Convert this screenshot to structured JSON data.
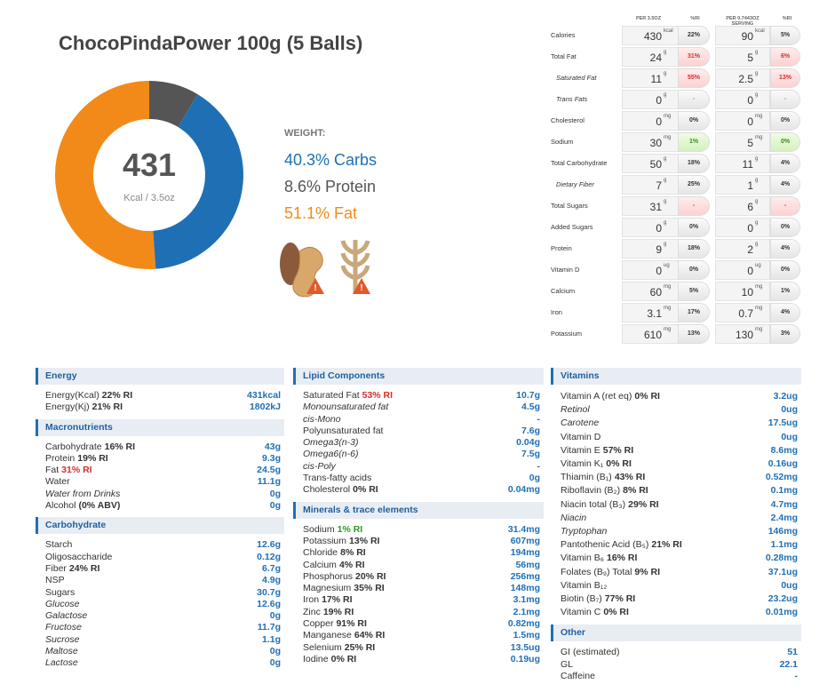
{
  "header": {
    "title": "ChocoPindaPower 100g (5 Balls)"
  },
  "donut": {
    "center_value": "431",
    "center_label": "Kcal / 3.5oz",
    "legend_title": "WEIGHT:",
    "segments": [
      {
        "name": "Carbs",
        "value": 40.3,
        "label": "40.3% Carbs",
        "color": "#1f6fb5"
      },
      {
        "name": "Protein",
        "value": 8.6,
        "label": "8.6% Protein",
        "color": "#555555"
      },
      {
        "name": "Fat",
        "value": 51.1,
        "label": "51.1% Fat",
        "color": "#f28a1a"
      }
    ]
  },
  "label_table": {
    "headers": [
      "PER 3.5OZ",
      "%RI",
      "PER 0.7443OZ SERVING",
      "%RI"
    ],
    "rows": [
      {
        "name": "Calories",
        "v1": 430,
        "u1": "kcal",
        "p1": "22%",
        "v2": 90,
        "u2": "kcal",
        "p2": "5%"
      },
      {
        "name": "Total Fat",
        "v1": 24,
        "u1": "g",
        "p1": "31%",
        "v2": 5,
        "u2": "g",
        "p2": "6%",
        "flag": "high"
      },
      {
        "name": "Saturated Fat",
        "v1": 11,
        "u1": "g",
        "p1": "55%",
        "v2": 2.5,
        "u2": "g",
        "p2": "13%",
        "flag": "high",
        "indent": true
      },
      {
        "name": "Trans Fats",
        "v1": 0,
        "u1": "g",
        "p1": "-",
        "v2": 0,
        "u2": "g",
        "p2": "-",
        "flag": "na",
        "indent": true
      },
      {
        "name": "Cholesterol",
        "v1": 0,
        "u1": "mg",
        "p1": "0%",
        "v2": 0,
        "u2": "mg",
        "p2": "0%"
      },
      {
        "name": "Sodium",
        "v1": 30,
        "u1": "mg",
        "p1": "1%",
        "v2": 5,
        "u2": "mg",
        "p2": "0%",
        "flag": "low"
      },
      {
        "name": "Total Carbohydrate",
        "v1": 50,
        "u1": "g",
        "p1": "18%",
        "v2": 11,
        "u2": "g",
        "p2": "4%"
      },
      {
        "name": "Dietary Fiber",
        "v1": 7,
        "u1": "g",
        "p1": "25%",
        "v2": 1,
        "u2": "g",
        "p2": "4%",
        "indent": true
      },
      {
        "name": "Total Sugars",
        "v1": 31,
        "u1": "g",
        "p1": "-",
        "v2": 6,
        "u2": "g",
        "p2": "-",
        "flag": "high"
      },
      {
        "name": "Added Sugars",
        "v1": 0,
        "u1": "g",
        "p1": "0%",
        "v2": 0,
        "u2": "g",
        "p2": "0%"
      },
      {
        "name": "Protein",
        "v1": 9,
        "u1": "g",
        "p1": "18%",
        "v2": 2,
        "u2": "g",
        "p2": "4%"
      },
      {
        "name": "Vitamin D",
        "v1": 0,
        "u1": "ug",
        "p1": "0%",
        "v2": 0,
        "u2": "ug",
        "p2": "0%"
      },
      {
        "name": "Calcium",
        "v1": 60,
        "u1": "mg",
        "p1": "5%",
        "v2": 10,
        "u2": "mg",
        "p2": "1%"
      },
      {
        "name": "Iron",
        "v1": 3.1,
        "u1": "mg",
        "p1": "17%",
        "v2": 0.7,
        "u2": "mg",
        "p2": "4%"
      },
      {
        "name": "Potassium",
        "v1": 610,
        "u1": "mg",
        "p1": "13%",
        "v2": 130,
        "u2": "mg",
        "p2": "3%"
      }
    ]
  },
  "columns": [
    [
      {
        "title": "Energy",
        "rows": [
          {
            "name": "Energy(Kcal)",
            "ri": "22% RI",
            "value": "431kcal"
          },
          {
            "name": "Energy(Kj)",
            "ri": "21% RI",
            "value": "1802kJ"
          }
        ]
      },
      {
        "title": "Macronutrients",
        "rows": [
          {
            "name": "Carbohydrate",
            "ri": "16% RI",
            "value": "43g"
          },
          {
            "name": "Protein",
            "ri": "19% RI",
            "value": "9.3g"
          },
          {
            "name": "Fat",
            "ri": "31% RI",
            "ri_color": "red",
            "value": "24.5g"
          },
          {
            "name": "Water",
            "value": "11.1g"
          },
          {
            "name": "Water from Drinks",
            "italic": true,
            "value": "0g"
          },
          {
            "name": "Alcohol",
            "ri": "(0% ABV)",
            "value": "0g"
          }
        ]
      },
      {
        "title": "Carbohydrate",
        "rows": [
          {
            "name": "Starch",
            "value": "12.6g"
          },
          {
            "name": "Oligosaccharide",
            "value": "0.12g"
          },
          {
            "name": "Fiber",
            "ri": "24% RI",
            "value": "6.7g"
          },
          {
            "name": "NSP",
            "value": "4.9g"
          },
          {
            "name": "Sugars",
            "value": "30.7g"
          },
          {
            "name": "Glucose",
            "italic": true,
            "value": "12.6g"
          },
          {
            "name": "Galactose",
            "italic": true,
            "value": "0g"
          },
          {
            "name": "Fructose",
            "italic": true,
            "value": "11.7g"
          },
          {
            "name": "Sucrose",
            "italic": true,
            "value": "1.1g"
          },
          {
            "name": "Maltose",
            "italic": true,
            "value": "0g"
          },
          {
            "name": "Lactose",
            "italic": true,
            "value": "0g"
          }
        ]
      }
    ],
    [
      {
        "title": "Lipid Components",
        "rows": [
          {
            "name": "Saturated Fat",
            "ri": "53% RI",
            "ri_color": "red",
            "value": "10.7g"
          },
          {
            "name": "Monounsaturated fat",
            "italic": true,
            "value": "4.5g"
          },
          {
            "name": "cis-Mono",
            "italic": true,
            "value": "-"
          },
          {
            "name": "Polyunsaturated fat",
            "value": "7.6g"
          },
          {
            "name": "Omega3(n-3)",
            "italic": true,
            "value": "0.04g"
          },
          {
            "name": "Omega6(n-6)",
            "italic": true,
            "value": "7.5g"
          },
          {
            "name": "cis-Poly",
            "italic": true,
            "value": "-"
          },
          {
            "name": "Trans-fatty acids",
            "value": "0g"
          },
          {
            "name": "Cholesterol",
            "ri": "0% RI",
            "value": "0.04mg"
          }
        ]
      },
      {
        "title": "Minerals & trace elements",
        "rows": [
          {
            "name": "Sodium",
            "ri": "1% RI",
            "ri_color": "green",
            "value": "31.4mg"
          },
          {
            "name": "Potassium",
            "ri": "13% RI",
            "value": "607mg"
          },
          {
            "name": "Chloride",
            "ri": "8% RI",
            "value": "194mg"
          },
          {
            "name": "Calcium",
            "ri": "4% RI",
            "value": "56mg"
          },
          {
            "name": "Phosphorus",
            "ri": "20% RI",
            "value": "256mg"
          },
          {
            "name": "Magnesium",
            "ri": "35% RI",
            "value": "148mg"
          },
          {
            "name": "Iron",
            "ri": "17% RI",
            "value": "3.1mg"
          },
          {
            "name": "Zinc",
            "ri": "19% RI",
            "value": "2.1mg"
          },
          {
            "name": "Copper",
            "ri": "91% RI",
            "value": "0.82mg"
          },
          {
            "name": "Manganese",
            "ri": "64% RI",
            "value": "1.5mg"
          },
          {
            "name": "Selenium",
            "ri": "25% RI",
            "value": "13.5ug"
          },
          {
            "name": "Iodine",
            "ri": "0% RI",
            "value": "0.19ug"
          }
        ]
      }
    ],
    [
      {
        "title": "Vitamins",
        "rows": [
          {
            "name": "Vitamin A (ret eq)",
            "ri": "0% RI",
            "value": "3.2ug"
          },
          {
            "name": "Retinol",
            "italic": true,
            "value": "0ug"
          },
          {
            "name": "Carotene",
            "italic": true,
            "value": "17.5ug"
          },
          {
            "name": "Vitamin D",
            "value": "0ug"
          },
          {
            "name": "Vitamin E",
            "ri": "57% RI",
            "value": "8.6mg"
          },
          {
            "name": "Vitamin K₁",
            "ri": "0% RI",
            "value": "0.16ug"
          },
          {
            "name": "Thiamin (B₁)",
            "ri": "43% RI",
            "value": "0.52mg"
          },
          {
            "name": "Riboflavin (B₂)",
            "ri": "8% RI",
            "value": "0.1mg"
          },
          {
            "name": "Niacin total (B₃)",
            "ri": "29% RI",
            "value": "4.7mg"
          },
          {
            "name": "Niacin",
            "italic": true,
            "value": "2.4mg"
          },
          {
            "name": "Tryptophan",
            "italic": true,
            "value": "146mg"
          },
          {
            "name": "Pantothenic Acid (B₅)",
            "ri": "21% RI",
            "value": "1.1mg"
          },
          {
            "name": "Vitamin B₆",
            "ri": "16% RI",
            "value": "0.28mg"
          },
          {
            "name": "Folates (B₉) Total",
            "ri": "9% RI",
            "value": "37.1ug"
          },
          {
            "name": "Vitamin B₁₂",
            "value": "0ug"
          },
          {
            "name": "Biotin (B₇)",
            "ri": "77% RI",
            "value": "23.2ug"
          },
          {
            "name": "Vitamin C",
            "ri": "0% RI",
            "value": "0.01mg"
          }
        ]
      },
      {
        "title": "Other",
        "rows": [
          {
            "name": "GI (estimated)",
            "value": "51"
          },
          {
            "name": "GL",
            "value": "22.1"
          },
          {
            "name": "Caffeine",
            "value": "-"
          }
        ]
      }
    ]
  ]
}
